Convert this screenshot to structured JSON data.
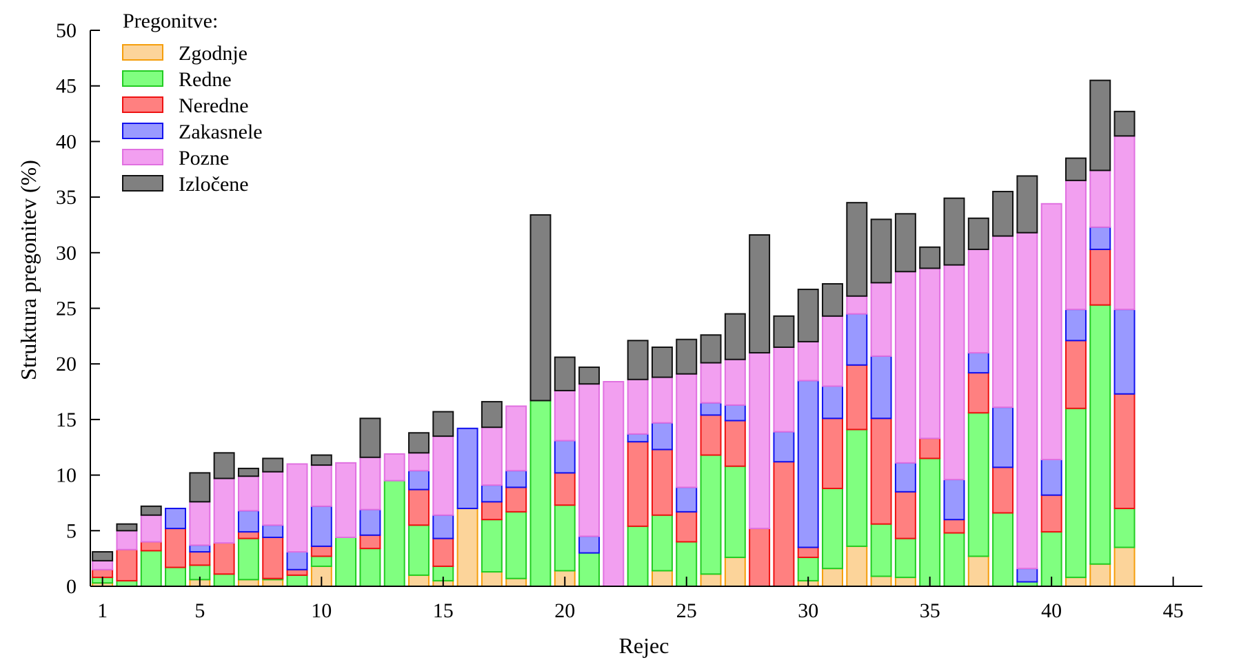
{
  "chart_data": {
    "type": "bar",
    "stacked": true,
    "xlabel": "Rejec",
    "ylabel": "Struktura pregonitev (%)",
    "legend_title": "Pregonitve:",
    "legend_placement": "top-left",
    "xlim": [
      0.5,
      46.2
    ],
    "ylim": [
      0,
      50
    ],
    "xticks": [
      1,
      5,
      10,
      15,
      20,
      25,
      30,
      35,
      40,
      45
    ],
    "yticks": [
      0,
      5,
      10,
      15,
      20,
      25,
      30,
      35,
      40,
      45,
      50
    ],
    "grid": false,
    "x": [
      1,
      2,
      3,
      4,
      5,
      6,
      7,
      8,
      9,
      10,
      11,
      12,
      13,
      14,
      15,
      16,
      17,
      18,
      19,
      20,
      21,
      22,
      23,
      24,
      25,
      26,
      27,
      28,
      29,
      30,
      31,
      32,
      33,
      34,
      35,
      36,
      37,
      38,
      39,
      40,
      41,
      42,
      43
    ],
    "series": [
      {
        "name": "Zgodnje",
        "fill": "#fcd49a",
        "stroke": "#f59e0b",
        "values": [
          0.3,
          0,
          0,
          0,
          0.6,
          0,
          0.6,
          0.6,
          0,
          1.8,
          0,
          0,
          0,
          1.0,
          0.5,
          7.0,
          1.3,
          0.7,
          0,
          1.4,
          0,
          0,
          0,
          1.4,
          0,
          1.1,
          2.6,
          0,
          0,
          0.5,
          1.6,
          3.6,
          0.9,
          0.8,
          0,
          0,
          2.7,
          0,
          0,
          0,
          0.8,
          2.0,
          3.5
        ]
      },
      {
        "name": "Redne",
        "fill": "#80ff80",
        "stroke": "#22cc22",
        "values": [
          0.5,
          0.5,
          3.2,
          1.7,
          1.3,
          1.1,
          3.7,
          0.1,
          1.0,
          0.9,
          4.4,
          3.4,
          9.5,
          4.5,
          1.3,
          0,
          4.7,
          6.0,
          16.7,
          5.9,
          3.0,
          0,
          5.4,
          5.0,
          4.0,
          10.7,
          8.2,
          0,
          0,
          2.1,
          7.2,
          10.5,
          4.7,
          3.5,
          11.5,
          4.8,
          12.9,
          6.6,
          0.4,
          4.9,
          15.2,
          23.3,
          3.5
        ]
      },
      {
        "name": "Neredne",
        "fill": "#ff8080",
        "stroke": "#ee1111",
        "values": [
          0.7,
          2.8,
          0.8,
          3.5,
          1.2,
          2.8,
          0.6,
          3.7,
          0.5,
          0.9,
          0,
          1.2,
          0,
          3.2,
          2.5,
          0,
          1.6,
          2.2,
          0,
          2.9,
          0,
          0,
          7.6,
          5.9,
          2.7,
          3.6,
          4.1,
          5.2,
          11.2,
          0.9,
          6.3,
          5.8,
          9.5,
          4.2,
          1.8,
          1.2,
          3.6,
          4.1,
          0,
          3.3,
          6.1,
          5.0,
          10.3
        ]
      },
      {
        "name": "Zakasnele",
        "fill": "#9999ff",
        "stroke": "#1111ee",
        "values": [
          0,
          0,
          0,
          1.8,
          0.6,
          0,
          1.9,
          1.1,
          1.6,
          3.6,
          0,
          2.3,
          0,
          1.7,
          2.1,
          7.2,
          1.5,
          1.5,
          0,
          2.9,
          1.5,
          0,
          0.7,
          2.4,
          2.2,
          1.1,
          1.4,
          0,
          2.7,
          15.0,
          2.9,
          4.6,
          5.6,
          2.6,
          0,
          3.6,
          1.8,
          5.4,
          1.2,
          3.2,
          2.8,
          2.0,
          7.6
        ]
      },
      {
        "name": "Pozne",
        "fill": "#f29ff0",
        "stroke": "#e070e0",
        "values": [
          0.8,
          1.7,
          2.4,
          0,
          3.9,
          5.8,
          3.1,
          4.8,
          7.9,
          3.7,
          6.7,
          4.7,
          2.4,
          1.6,
          7.1,
          0,
          5.2,
          5.8,
          0,
          4.5,
          13.7,
          18.4,
          4.9,
          4.1,
          10.2,
          3.6,
          4.1,
          15.8,
          7.6,
          3.5,
          6.3,
          1.6,
          6.6,
          17.2,
          15.3,
          19.3,
          9.3,
          15.4,
          30.2,
          23.0,
          11.6,
          5.1,
          15.6
        ]
      },
      {
        "name": "Izločene",
        "fill": "#808080",
        "stroke": "#111111",
        "values": [
          0.8,
          0.6,
          0.8,
          0,
          2.6,
          2.3,
          0.7,
          1.2,
          0,
          0.9,
          0,
          3.5,
          0,
          1.8,
          2.2,
          0,
          2.3,
          0,
          16.7,
          3.0,
          1.5,
          0,
          3.5,
          2.7,
          3.1,
          2.5,
          4.1,
          10.6,
          2.8,
          4.7,
          2.9,
          8.4,
          5.7,
          5.2,
          1.9,
          6.0,
          2.8,
          4.0,
          5.1,
          0,
          2.0,
          8.1,
          2.2
        ]
      }
    ]
  }
}
